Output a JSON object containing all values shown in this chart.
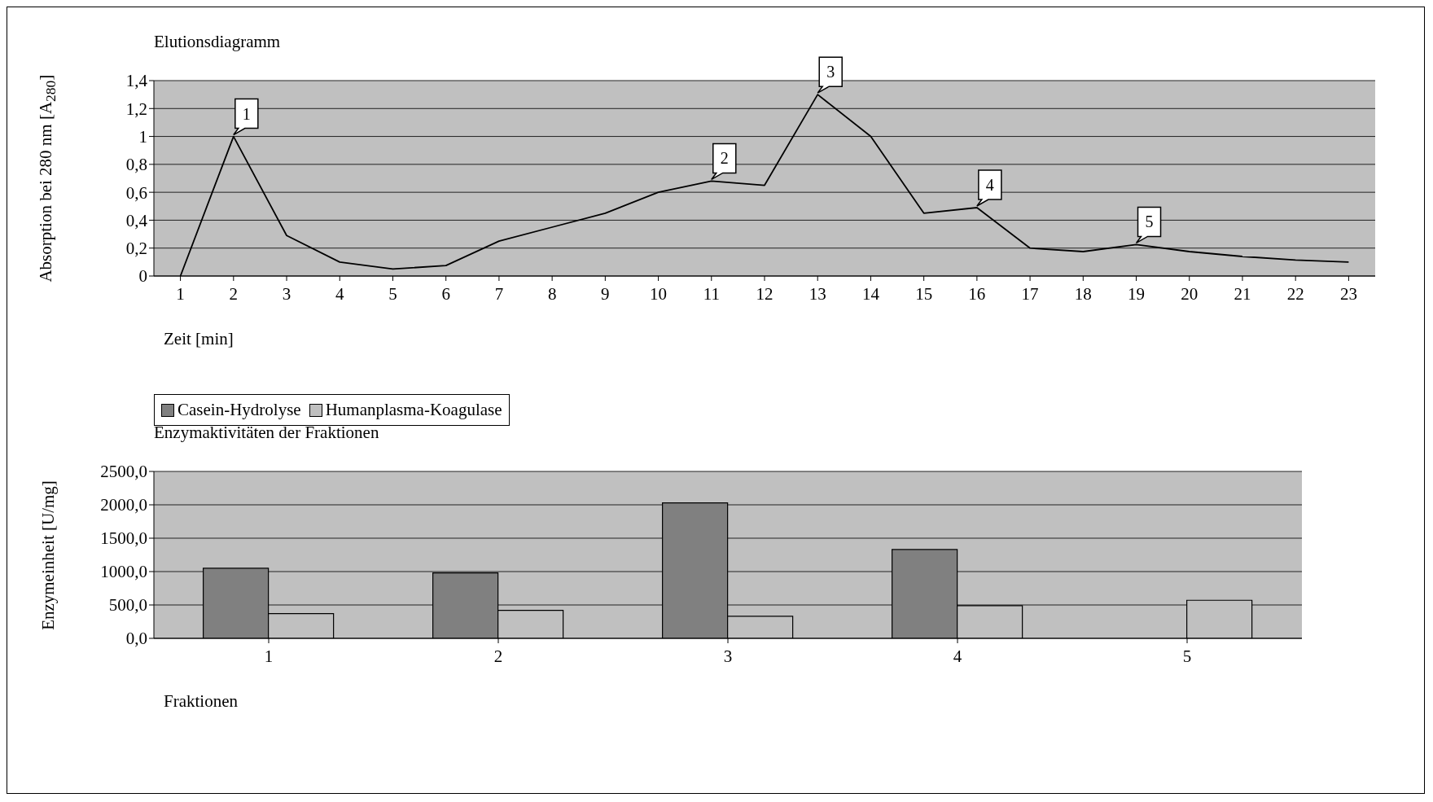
{
  "chart_data": [
    {
      "type": "line",
      "title": "Elutionsdiagramm",
      "xlabel": "Zeit [min]",
      "ylabel": "Absorption bei 280 nm [A$_{280}$]",
      "x": [
        1,
        2,
        3,
        4,
        5,
        6,
        7,
        8,
        9,
        10,
        11,
        12,
        13,
        14,
        15,
        16,
        17,
        18,
        19,
        20,
        21,
        22,
        23
      ],
      "values": [
        0,
        1.0,
        0.29,
        0.1,
        0.05,
        0.075,
        0.25,
        0.35,
        0.45,
        0.6,
        0.68,
        0.65,
        1.3,
        1.0,
        0.45,
        0.49,
        0.2,
        0.175,
        0.225,
        0.175,
        0.14,
        0.115,
        0.1
      ],
      "color": "#000000",
      "xlim": [
        0.5,
        23.5
      ],
      "xticks": [
        1,
        2,
        3,
        4,
        5,
        6,
        7,
        8,
        9,
        10,
        11,
        12,
        13,
        14,
        15,
        16,
        17,
        18,
        19,
        20,
        21,
        22,
        23
      ],
      "ylim": [
        0,
        1.4
      ],
      "yticks": [
        0,
        {
          "value": 0.2,
          "label": "0,2"
        },
        {
          "value": 0.4,
          "label": "0,4"
        },
        {
          "value": 0.6,
          "label": "0,6"
        },
        {
          "value": 0.8,
          "label": "0,8"
        },
        1,
        {
          "value": 1.2,
          "label": "1,2"
        },
        {
          "value": 1.4,
          "label": "1,4"
        }
      ],
      "grid": "y",
      "annotations": [
        {
          "text": "1",
          "x": 2,
          "y": 1.0
        },
        {
          "text": "2",
          "x": 11,
          "y": 0.68
        },
        {
          "text": "3",
          "x": 13,
          "y": 1.3
        },
        {
          "text": "4",
          "x": 16,
          "y": 0.49
        },
        {
          "text": "5",
          "x": 19,
          "y": 0.225
        }
      ]
    },
    {
      "type": "bar",
      "title": "Enzymaktivitäten der Fraktionen",
      "xlabel": "Fraktionen",
      "ylabel": "Enzymeinheit [U/mg]",
      "categories": [
        "1",
        "2",
        "3",
        "4",
        "5"
      ],
      "series": [
        {
          "name": "Casein-Hydrolyse",
          "color": "#808080",
          "values": [
            1050,
            980,
            2030,
            1330,
            null
          ]
        },
        {
          "name": "Humanplasma-Koagulase",
          "color": "#c0c0c0",
          "values": [
            370,
            420,
            330,
            490,
            570
          ]
        }
      ],
      "ylim": [
        0,
        2500
      ],
      "yticks": [
        {
          "value": 0,
          "label": "0,0"
        },
        {
          "value": 500,
          "label": "500,0"
        },
        {
          "value": 1000,
          "label": "1000,0"
        },
        {
          "value": 1500,
          "label": "1500,0"
        },
        {
          "value": 2000,
          "label": "2000,0"
        },
        {
          "value": 2500,
          "label": "2500,0"
        }
      ],
      "grid": "y",
      "legend": "top left"
    }
  ]
}
